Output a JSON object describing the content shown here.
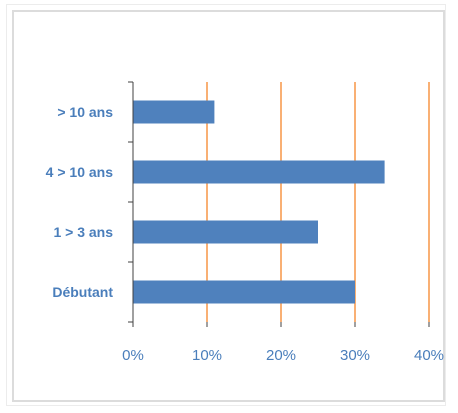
{
  "chart_data": {
    "type": "bar",
    "orientation": "horizontal",
    "categories": [
      "> 10 ans",
      "4 > 10 ans",
      "1 > 3 ans",
      "Débutant"
    ],
    "values": [
      11,
      34,
      25,
      30
    ],
    "xlim": [
      0,
      40
    ],
    "x_ticks": [
      "0%",
      "10%",
      "20%",
      "30%",
      "40%"
    ],
    "grid": "vertical",
    "colors": {
      "bar": "#4f81bd",
      "grid": "#f79646",
      "axis": "#404040",
      "label": "#4a7ebb"
    }
  }
}
